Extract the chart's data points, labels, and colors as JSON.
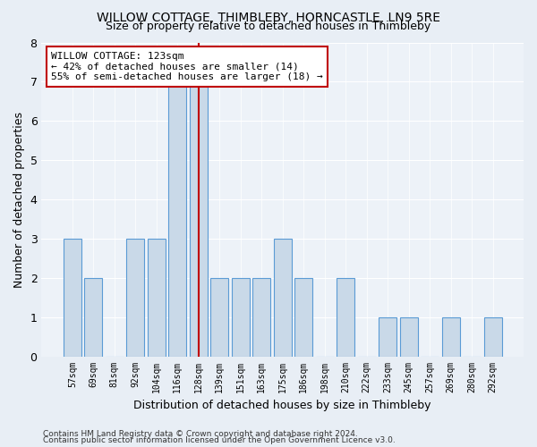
{
  "title": "WILLOW COTTAGE, THIMBLEBY, HORNCASTLE, LN9 5RE",
  "subtitle": "Size of property relative to detached houses in Thimbleby",
  "xlabel": "Distribution of detached houses by size in Thimbleby",
  "ylabel": "Number of detached properties",
  "categories": [
    "57sqm",
    "69sqm",
    "81sqm",
    "92sqm",
    "104sqm",
    "116sqm",
    "128sqm",
    "139sqm",
    "151sqm",
    "163sqm",
    "175sqm",
    "186sqm",
    "198sqm",
    "210sqm",
    "222sqm",
    "233sqm",
    "245sqm",
    "257sqm",
    "269sqm",
    "280sqm",
    "292sqm"
  ],
  "values": [
    3,
    2,
    0,
    3,
    3,
    7,
    7,
    2,
    2,
    2,
    3,
    2,
    0,
    2,
    0,
    1,
    1,
    0,
    1,
    0,
    1
  ],
  "bar_color": "#c9d9e8",
  "bar_edge_color": "#5b9bd5",
  "vline_color": "#c00000",
  "vline_index": 6,
  "annotation_text": "WILLOW COTTAGE: 123sqm\n← 42% of detached houses are smaller (14)\n55% of semi-detached houses are larger (18) →",
  "annotation_box_color": "#c00000",
  "ylim": [
    0,
    8
  ],
  "yticks": [
    0,
    1,
    2,
    3,
    4,
    5,
    6,
    7,
    8
  ],
  "footer1": "Contains HM Land Registry data © Crown copyright and database right 2024.",
  "footer2": "Contains public sector information licensed under the Open Government Licence v3.0.",
  "bg_color": "#e8eef5",
  "plot_bg_color": "#edf2f8"
}
